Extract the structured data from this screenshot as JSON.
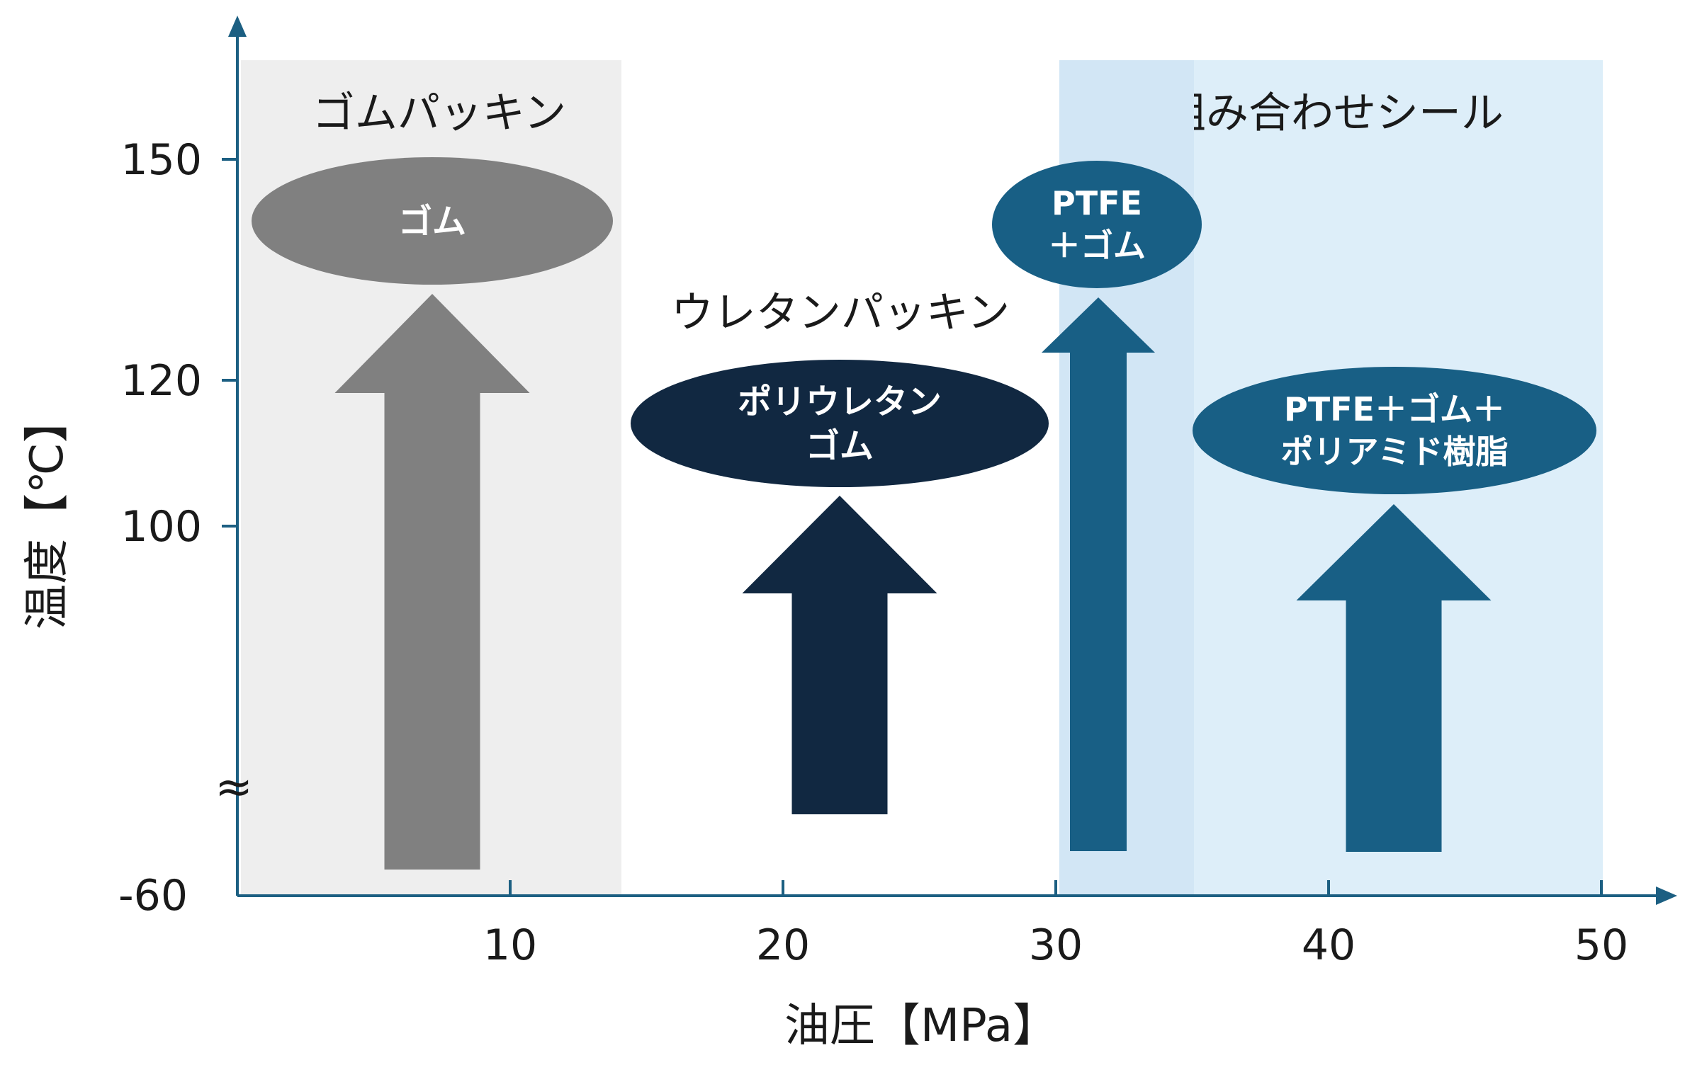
{
  "chart_data": {
    "type": "diagram-chart",
    "xlabel": "油圧【MPa】",
    "ylabel": "温度【℃】",
    "xlim": [
      0,
      52
    ],
    "x_ticks": [
      10,
      20,
      30,
      40,
      50
    ],
    "y_ticks": [
      -60,
      100,
      120,
      150
    ],
    "axis_break_symbol": "≈",
    "regions": [
      {
        "name": "rubber-packing",
        "label": "ゴムパッキン",
        "x_range": [
          0,
          14
        ],
        "color": "#eeeeee"
      },
      {
        "name": "urethane-packing",
        "label": "ウレタンパッキン",
        "x_range": [
          14,
          30
        ],
        "color": "#ffffff"
      },
      {
        "name": "combo-seal",
        "label": "組み合わせシール",
        "x_range": [
          30,
          50
        ],
        "color": "#ddeef9"
      }
    ],
    "overlap_band": {
      "x_range": [
        30,
        35
      ],
      "color": "#d2e6f5"
    },
    "items": [
      {
        "name": "rubber",
        "lines": [
          "ゴム"
        ],
        "pressure_max": 14,
        "temp_max": 150,
        "color": "#808080"
      },
      {
        "name": "polyurethane-rubber",
        "lines": [
          "ポリウレタン",
          "ゴム"
        ],
        "pressure_max": 30,
        "temp_max": 100,
        "color": "#112841"
      },
      {
        "name": "ptfe-rubber",
        "lines": [
          "PTFE",
          "＋ゴム"
        ],
        "pressure_max": 35,
        "temp_max": 150,
        "color": "#185f85"
      },
      {
        "name": "ptfe-rubber-polyamide",
        "lines": [
          "PTFE＋ゴム＋",
          "ポリアミド樹脂"
        ],
        "pressure_max": 50,
        "temp_max": 120,
        "color": "#185f85"
      }
    ]
  }
}
